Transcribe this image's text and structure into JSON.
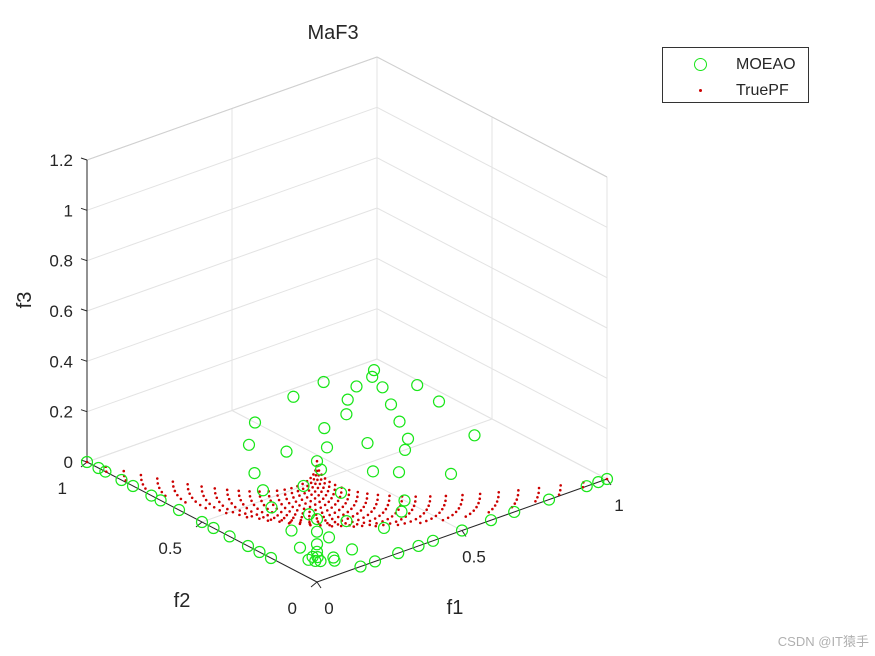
{
  "chart_data": {
    "type": "scatter",
    "title": "MaF3",
    "xlabel": "f1",
    "ylabel": "f2",
    "zlabel": "f3",
    "xlim": [
      0,
      1
    ],
    "ylim": [
      0,
      1
    ],
    "zlim": [
      0,
      1.2
    ],
    "x_ticks": [
      "0",
      "0.5",
      "1"
    ],
    "y_ticks": [
      "0",
      "0.5",
      "1"
    ],
    "z_ticks": [
      "0",
      "0.2",
      "0.4",
      "0.6",
      "0.8",
      "1",
      "1.2"
    ],
    "grid": true,
    "legend_position": "top-right",
    "series": [
      {
        "name": "MOEAO",
        "marker": "circle",
        "color": "#19e619",
        "points": [
          [
            0.0,
            0.0,
            0.48
          ],
          [
            0.0,
            0.0,
            0.25
          ],
          [
            0.0,
            0.0,
            0.2
          ],
          [
            0.0,
            0.0,
            0.15
          ],
          [
            0.0,
            0.0,
            0.12
          ],
          [
            0.01,
            0.01,
            0.09
          ],
          [
            0.01,
            0.02,
            0.07
          ],
          [
            0.02,
            0.01,
            0.07
          ],
          [
            0.0,
            1.0,
            0.0
          ],
          [
            0.0,
            0.95,
            0.0
          ],
          [
            0.0,
            0.92,
            0.0
          ],
          [
            0.0,
            0.85,
            0.0
          ],
          [
            0.0,
            0.8,
            0.0
          ],
          [
            0.0,
            0.72,
            0.0
          ],
          [
            0.0,
            0.68,
            0.0
          ],
          [
            0.0,
            0.6,
            0.0
          ],
          [
            0.0,
            0.5,
            0.0
          ],
          [
            0.0,
            0.45,
            0.0
          ],
          [
            0.0,
            0.38,
            0.0
          ],
          [
            0.0,
            0.3,
            0.0
          ],
          [
            0.0,
            0.25,
            0.0
          ],
          [
            0.0,
            0.2,
            0.0
          ],
          [
            1.0,
            0.0,
            0.0
          ],
          [
            0.97,
            0.0,
            0.0
          ],
          [
            0.93,
            0.0,
            0.0
          ],
          [
            0.8,
            0.0,
            0.0
          ],
          [
            0.68,
            0.0,
            0.0
          ],
          [
            0.6,
            0.0,
            0.0
          ],
          [
            0.5,
            0.0,
            0.0
          ],
          [
            0.4,
            0.0,
            0.0
          ],
          [
            0.35,
            0.0,
            0.0
          ],
          [
            0.28,
            0.0,
            0.0
          ],
          [
            0.2,
            0.0,
            0.0
          ],
          [
            0.15,
            0.0,
            0.0
          ],
          [
            0.05,
            0.1,
            0.02
          ],
          [
            0.1,
            0.05,
            0.02
          ],
          [
            0.08,
            0.12,
            0.01
          ],
          [
            0.12,
            0.08,
            0.01
          ],
          [
            0.2,
            0.2,
            0.0
          ],
          [
            0.3,
            0.25,
            0.0
          ],
          [
            0.25,
            0.35,
            0.0
          ],
          [
            0.4,
            0.4,
            0.0
          ],
          [
            0.15,
            0.3,
            0.0
          ],
          [
            0.35,
            0.15,
            0.0
          ],
          [
            0.5,
            0.25,
            0.0
          ],
          [
            0.25,
            0.55,
            0.0
          ],
          [
            0.45,
            0.55,
            0.0
          ],
          [
            0.6,
            0.4,
            0.0
          ],
          [
            0.3,
            0.65,
            0.0
          ],
          [
            0.55,
            0.65,
            0.0
          ],
          [
            0.7,
            0.3,
            0.0
          ],
          [
            0.65,
            0.6,
            0.0
          ],
          [
            0.4,
            0.8,
            0.0
          ],
          [
            0.75,
            0.55,
            0.0
          ],
          [
            0.62,
            0.75,
            0.0
          ],
          [
            0.8,
            0.65,
            0.0
          ],
          [
            0.72,
            0.78,
            0.0
          ],
          [
            0.85,
            0.75,
            0.0
          ],
          [
            0.78,
            0.85,
            0.0
          ],
          [
            0.9,
            0.85,
            0.0
          ],
          [
            0.85,
            0.9,
            0.0
          ],
          [
            0.92,
            0.92,
            0.0
          ],
          [
            0.95,
            0.95,
            0.0
          ],
          [
            0.5,
            0.9,
            0.0
          ],
          [
            0.9,
            0.45,
            0.0
          ],
          [
            0.55,
            0.45,
            0.0
          ],
          [
            0.45,
            0.7,
            0.0
          ],
          [
            0.7,
            0.5,
            0.0
          ],
          [
            0.2,
            0.45,
            0.0
          ],
          [
            0.45,
            0.2,
            0.0
          ],
          [
            0.1,
            0.2,
            0.0
          ],
          [
            0.2,
            0.1,
            0.0
          ],
          [
            0.35,
            0.5,
            0.0
          ],
          [
            0.98,
            0.8,
            0.0
          ],
          [
            0.8,
            0.98,
            0.0
          ],
          [
            0.96,
            0.68,
            0.0
          ],
          [
            0.68,
            0.96,
            0.0
          ]
        ]
      },
      {
        "name": "TruePF",
        "marker": "dot",
        "color": "#cc0000",
        "description_rule": "points on f1^0.5 + f2^0.5 + f3 = 1 (concave front) generated by grid"
      }
    ]
  },
  "watermark": "CSDN @IT猿手"
}
